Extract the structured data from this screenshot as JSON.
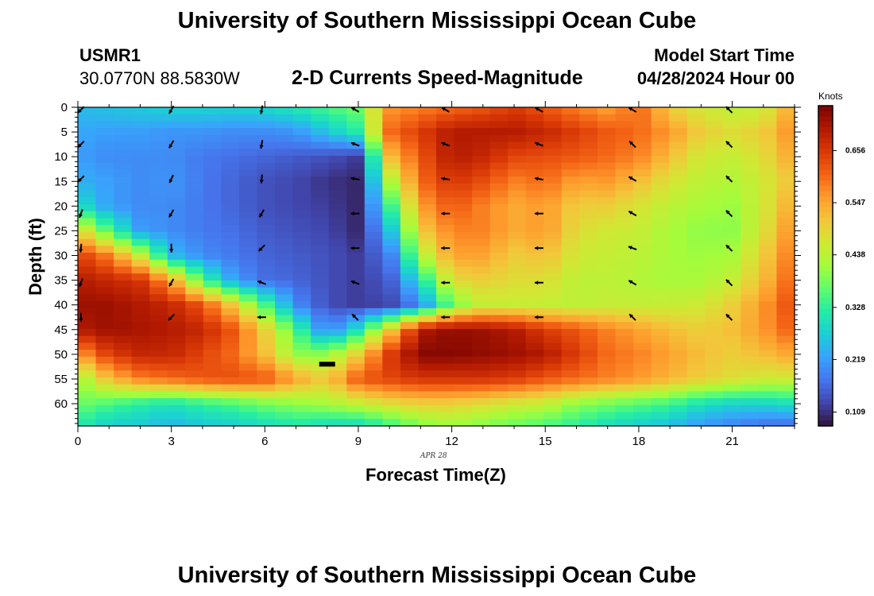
{
  "page": {
    "title": "University of Southern Mississippi Ocean Cube",
    "title_repeat": "University of Southern Mississippi Ocean Cube",
    "station": "USMR1",
    "coords": "30.0770N  88.5830W",
    "plot_title": "2-D Currents Speed-Magnitude",
    "model_label": "Model Start Time",
    "model_time": "04/28/2024 Hour 00"
  },
  "chart_data": {
    "type": "heatmap",
    "title": "2-D Currents Speed-Magnitude",
    "xlabel": "Forecast Time(Z)",
    "ylabel": "Depth (ft)",
    "date_label": "APR 28",
    "colorbar_label": "Knots",
    "xlim": [
      0,
      23
    ],
    "ylim": [
      0,
      64.5
    ],
    "x_ticks": [
      0,
      3,
      6,
      9,
      12,
      15,
      18,
      21
    ],
    "y_ticks": [
      0,
      5,
      10,
      15,
      20,
      25,
      30,
      35,
      40,
      45,
      50,
      55,
      60
    ],
    "colorbar_ticks": [
      0.109,
      0.219,
      0.328,
      0.438,
      0.547,
      0.656
    ],
    "vmin": 0.08,
    "vmax": 0.75,
    "colors": [
      "#30123b",
      "#4145ab",
      "#4675ed",
      "#39a2fc",
      "#1bcfd4",
      "#24eca6",
      "#61fc6c",
      "#a4fc3b",
      "#d1e834",
      "#f3c63a",
      "#fe9b2d",
      "#f36315",
      "#d93806",
      "#b11901",
      "#7a0402"
    ],
    "hours": [
      0,
      1,
      2,
      3,
      4,
      5,
      6,
      7,
      8,
      9,
      10,
      11,
      12,
      13,
      14,
      15,
      16,
      17,
      18,
      19,
      20,
      21,
      22,
      23
    ],
    "depths": [
      0,
      5,
      10,
      15,
      20,
      25,
      30,
      35,
      40,
      45,
      50,
      55,
      60,
      64
    ],
    "speed_knots": [
      [
        0.25,
        0.26,
        0.27,
        0.28,
        0.28,
        0.28,
        0.29,
        0.31,
        0.35,
        0.38,
        0.56,
        0.58,
        0.6,
        0.62,
        0.65,
        0.62,
        0.58,
        0.55,
        0.6,
        0.5,
        0.46,
        0.44,
        0.45,
        0.55
      ],
      [
        0.23,
        0.22,
        0.22,
        0.21,
        0.21,
        0.2,
        0.2,
        0.21,
        0.26,
        0.32,
        0.6,
        0.65,
        0.7,
        0.7,
        0.7,
        0.68,
        0.65,
        0.62,
        0.6,
        0.56,
        0.5,
        0.48,
        0.5,
        0.58
      ],
      [
        0.22,
        0.2,
        0.2,
        0.2,
        0.18,
        0.17,
        0.16,
        0.15,
        0.14,
        0.12,
        0.52,
        0.62,
        0.7,
        0.68,
        0.64,
        0.63,
        0.62,
        0.6,
        0.58,
        0.52,
        0.46,
        0.45,
        0.48,
        0.55
      ],
      [
        0.24,
        0.22,
        0.2,
        0.21,
        0.18,
        0.16,
        0.14,
        0.13,
        0.11,
        0.1,
        0.42,
        0.6,
        0.66,
        0.63,
        0.58,
        0.6,
        0.55,
        0.56,
        0.52,
        0.47,
        0.44,
        0.43,
        0.46,
        0.52
      ],
      [
        0.3,
        0.22,
        0.2,
        0.2,
        0.18,
        0.16,
        0.14,
        0.13,
        0.12,
        0.1,
        0.33,
        0.55,
        0.62,
        0.58,
        0.54,
        0.56,
        0.5,
        0.5,
        0.47,
        0.44,
        0.42,
        0.41,
        0.46,
        0.55
      ],
      [
        0.5,
        0.35,
        0.22,
        0.2,
        0.18,
        0.17,
        0.15,
        0.14,
        0.13,
        0.1,
        0.25,
        0.5,
        0.58,
        0.58,
        0.54,
        0.56,
        0.48,
        0.46,
        0.45,
        0.42,
        0.4,
        0.4,
        0.47,
        0.58
      ],
      [
        0.65,
        0.58,
        0.45,
        0.25,
        0.2,
        0.18,
        0.16,
        0.15,
        0.14,
        0.12,
        0.18,
        0.42,
        0.55,
        0.55,
        0.5,
        0.52,
        0.46,
        0.45,
        0.44,
        0.42,
        0.41,
        0.42,
        0.5,
        0.6
      ],
      [
        0.7,
        0.68,
        0.66,
        0.55,
        0.35,
        0.22,
        0.17,
        0.16,
        0.14,
        0.12,
        0.15,
        0.3,
        0.48,
        0.5,
        0.48,
        0.48,
        0.44,
        0.44,
        0.43,
        0.42,
        0.42,
        0.45,
        0.52,
        0.62
      ],
      [
        0.72,
        0.72,
        0.7,
        0.68,
        0.62,
        0.5,
        0.35,
        0.2,
        0.14,
        0.12,
        0.13,
        0.2,
        0.38,
        0.45,
        0.45,
        0.45,
        0.44,
        0.45,
        0.45,
        0.45,
        0.46,
        0.5,
        0.56,
        0.64
      ],
      [
        0.7,
        0.72,
        0.71,
        0.7,
        0.68,
        0.62,
        0.5,
        0.35,
        0.18,
        0.3,
        0.5,
        0.7,
        0.73,
        0.72,
        0.7,
        0.65,
        0.62,
        0.58,
        0.55,
        0.52,
        0.5,
        0.52,
        0.56,
        0.62
      ],
      [
        0.55,
        0.65,
        0.68,
        0.68,
        0.64,
        0.6,
        0.52,
        0.4,
        0.4,
        0.5,
        0.65,
        0.74,
        0.74,
        0.73,
        0.72,
        0.7,
        0.65,
        0.6,
        0.58,
        0.55,
        0.52,
        0.5,
        0.52,
        0.55
      ],
      [
        0.4,
        0.52,
        0.58,
        0.6,
        0.62,
        0.63,
        0.62,
        0.55,
        0.5,
        0.62,
        0.64,
        0.66,
        0.66,
        0.66,
        0.65,
        0.62,
        0.6,
        0.58,
        0.56,
        0.53,
        0.5,
        0.48,
        0.46,
        0.46
      ],
      [
        0.38,
        0.35,
        0.32,
        0.3,
        0.33,
        0.35,
        0.38,
        0.4,
        0.42,
        0.45,
        0.48,
        0.5,
        0.5,
        0.48,
        0.46,
        0.45,
        0.4,
        0.38,
        0.36,
        0.34,
        0.3,
        0.28,
        0.28,
        0.3
      ],
      [
        0.32,
        0.28,
        0.27,
        0.25,
        0.27,
        0.28,
        0.3,
        0.32,
        0.3,
        0.3,
        0.35,
        0.4,
        0.42,
        0.4,
        0.38,
        0.36,
        0.33,
        0.3,
        0.28,
        0.26,
        0.22,
        0.2,
        0.18,
        0.18
      ]
    ],
    "arrows": {
      "hours": [
        0.1,
        3.0,
        5.9,
        8.9,
        11.8,
        14.8,
        17.8,
        20.9
      ],
      "depths": [
        0.5,
        7.5,
        14.5,
        21.5,
        28.5,
        35.5,
        42.5
      ],
      "dir_deg": [
        [
          135,
          120,
          100,
          210,
          210,
          210,
          210,
          225
        ],
        [
          135,
          120,
          100,
          200,
          200,
          200,
          225,
          225
        ],
        [
          135,
          115,
          95,
          190,
          190,
          190,
          210,
          225
        ],
        [
          110,
          120,
          120,
          180,
          180,
          180,
          210,
          225
        ],
        [
          95,
          90,
          135,
          180,
          180,
          180,
          200,
          225
        ],
        [
          110,
          120,
          200,
          200,
          180,
          180,
          210,
          225
        ],
        [
          90,
          135,
          180,
          225,
          180,
          180,
          225,
          225
        ]
      ],
      "present": [
        [
          1,
          1,
          1,
          1,
          1,
          1,
          1,
          1
        ],
        [
          1,
          1,
          1,
          1,
          1,
          1,
          1,
          1
        ],
        [
          1,
          1,
          1,
          1,
          1,
          1,
          1,
          1
        ],
        [
          1,
          1,
          1,
          1,
          1,
          1,
          1,
          1
        ],
        [
          1,
          1,
          1,
          1,
          1,
          1,
          1,
          1
        ],
        [
          1,
          1,
          1,
          1,
          1,
          1,
          1,
          1
        ],
        [
          1,
          1,
          1,
          1,
          1,
          1,
          1,
          1
        ]
      ],
      "bottom_marker": {
        "hour": 8.0,
        "depth": 52
      }
    }
  }
}
